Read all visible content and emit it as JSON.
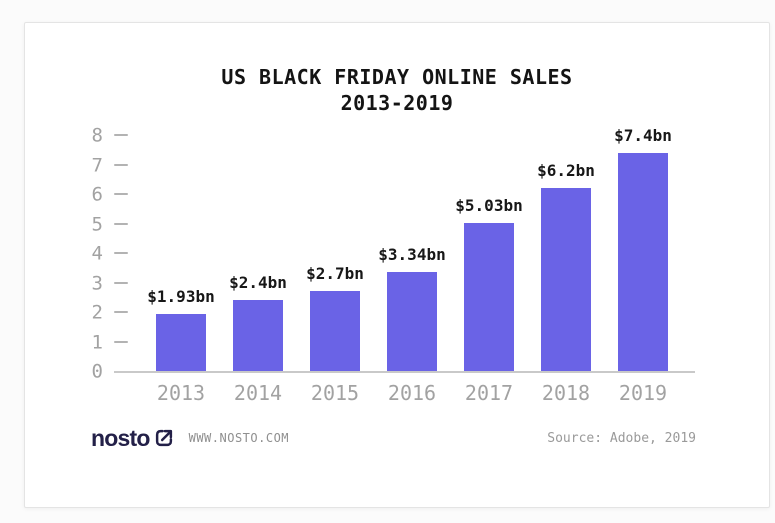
{
  "page": {
    "background": "#fbfbfb",
    "card_background": "#ffffff",
    "card_border": "#e4e4e4"
  },
  "chart_data": {
    "type": "bar",
    "title": "US BLACK FRIDAY ONLINE SALES",
    "subtitle": "2013-2019",
    "categories": [
      "2013",
      "2014",
      "2015",
      "2016",
      "2017",
      "2018",
      "2019"
    ],
    "values": [
      1.93,
      2.4,
      2.7,
      3.34,
      5.03,
      6.2,
      7.4
    ],
    "bar_labels": [
      "$1.93bn",
      "$2.4bn",
      "$2.7bn",
      "$3.34bn",
      "$5.03bn",
      "$6.2bn",
      "$7.4bn"
    ],
    "yticks": [
      0,
      1,
      2,
      3,
      4,
      5,
      6,
      7,
      8
    ],
    "ylim": [
      0,
      8
    ],
    "xlabel": "",
    "ylabel": "",
    "grid": false,
    "legend": false,
    "bar_color": "#6a63e6",
    "axis_text_color": "#a2a2a2",
    "value_label_color": "#171717"
  },
  "footer": {
    "logo_text": "nosto",
    "logo_color": "#232048",
    "website": "WWW.NOSTO.COM",
    "source": "Source: Adobe, 2019"
  }
}
